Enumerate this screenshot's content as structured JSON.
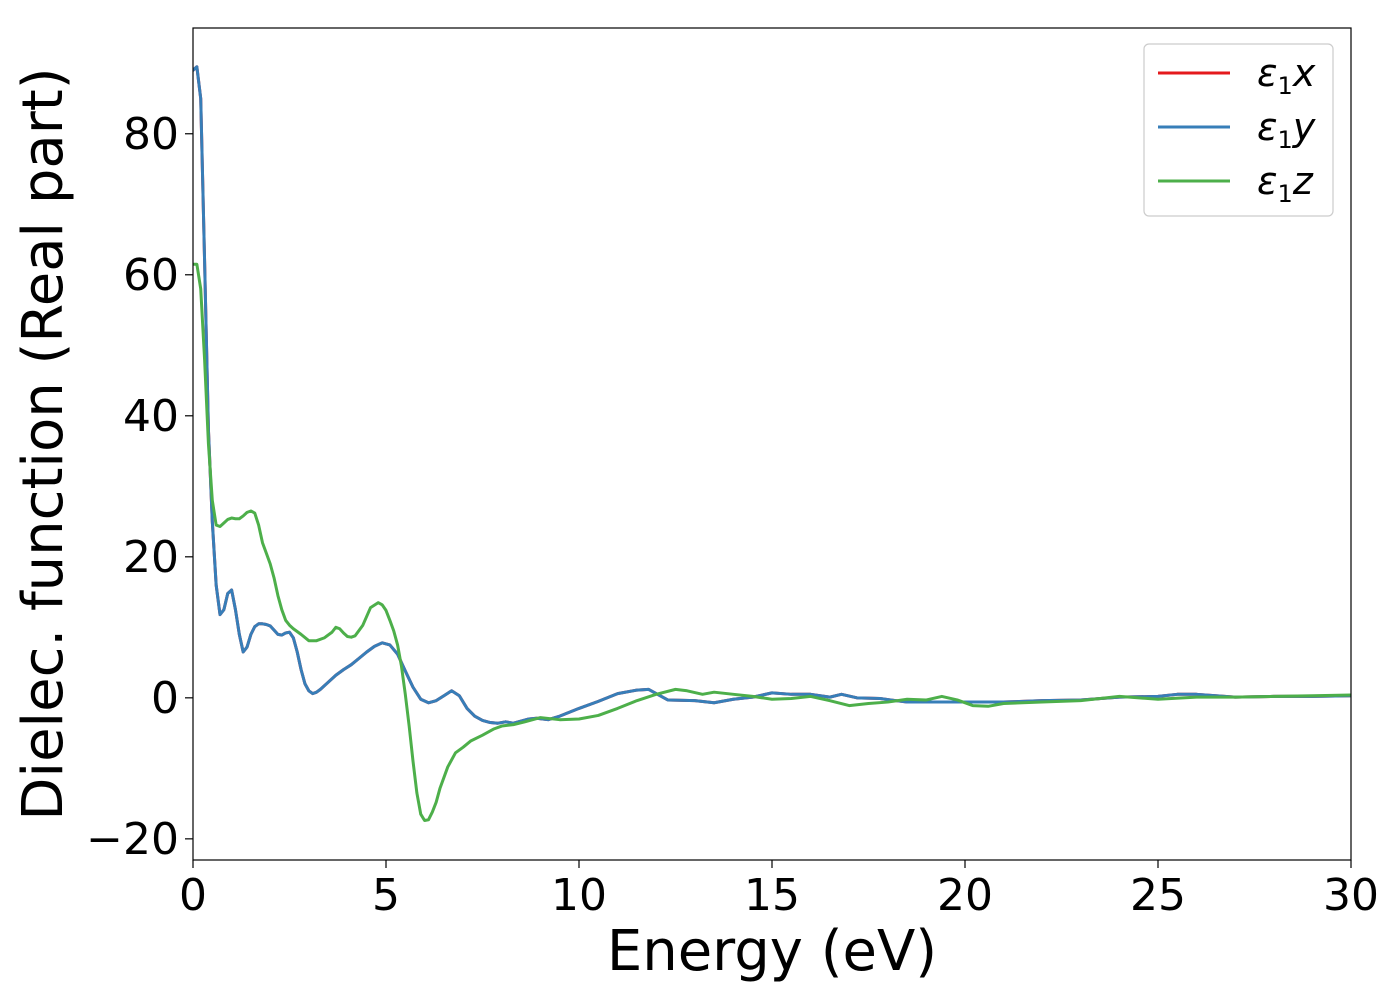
{
  "chart_data": {
    "type": "line",
    "title": "",
    "xlabel": "Energy (eV)",
    "ylabel": "Dielec. function (Real part)",
    "xlim": [
      0,
      30
    ],
    "ylim": [
      -23,
      95
    ],
    "xticks": [
      0,
      5,
      10,
      15,
      20,
      25,
      30
    ],
    "xtick_labels": [
      "0",
      "5",
      "10",
      "15",
      "20",
      "25",
      "30"
    ],
    "yticks": [
      -20,
      0,
      20,
      40,
      60,
      80
    ],
    "ytick_labels": [
      "−20",
      "0",
      "20",
      "40",
      "60",
      "80"
    ],
    "grid": false,
    "legend_position": "top-right",
    "series": [
      {
        "name": "ε1x",
        "legend_base": "ε",
        "legend_sub": "1",
        "legend_var": "x",
        "color": "#e41a1c",
        "x": [
          0,
          0.1,
          0.2,
          0.3,
          0.4,
          0.5,
          0.6,
          0.7,
          0.8,
          0.9,
          1.0,
          1.1,
          1.2,
          1.3,
          1.4,
          1.5,
          1.6,
          1.7,
          1.8,
          1.9,
          2.0,
          2.1,
          2.2,
          2.3,
          2.4,
          2.5,
          2.6,
          2.7,
          2.8,
          2.9,
          3.0,
          3.1,
          3.2,
          3.3,
          3.5,
          3.7,
          3.9,
          4.1,
          4.3,
          4.5,
          4.7,
          4.9,
          5.1,
          5.3,
          5.5,
          5.7,
          5.9,
          6.1,
          6.3,
          6.5,
          6.7,
          6.9,
          7.1,
          7.3,
          7.5,
          7.7,
          7.9,
          8.1,
          8.3,
          8.5,
          8.7,
          8.9,
          9.2,
          9.5,
          10.0,
          10.5,
          11.0,
          11.5,
          11.8,
          12.0,
          12.3,
          13.0,
          13.5,
          14.0,
          14.5,
          15.0,
          15.5,
          16.0,
          16.5,
          16.8,
          17.2,
          17.8,
          18.5,
          19.0,
          19.5,
          20.0,
          20.5,
          21.0,
          22.0,
          23.0,
          24.0,
          25.0,
          25.5,
          26.0,
          26.5,
          27.0,
          28.0,
          29.0,
          30.0
        ],
        "y": [
          89,
          89.5,
          85,
          62,
          38,
          25,
          16,
          11.8,
          12.5,
          14.8,
          15.3,
          12.5,
          9,
          6.5,
          7.2,
          9,
          10.1,
          10.5,
          10.5,
          10.4,
          10.2,
          9.6,
          9,
          8.9,
          9.2,
          9.3,
          8.5,
          6.5,
          4,
          2,
          1,
          0.6,
          0.8,
          1.2,
          2.2,
          3.2,
          4,
          4.7,
          5.6,
          6.5,
          7.3,
          7.8,
          7.5,
          6.2,
          3.8,
          1.5,
          -0.2,
          -0.7,
          -0.4,
          0.3,
          1,
          0.3,
          -1.5,
          -2.6,
          -3.2,
          -3.5,
          -3.6,
          -3.4,
          -3.6,
          -3.3,
          -3.0,
          -2.9,
          -3.1,
          -2.6,
          -1.5,
          -0.5,
          0.6,
          1.1,
          1.2,
          0.6,
          -0.3,
          -0.4,
          -0.7,
          -0.2,
          0.1,
          0.7,
          0.5,
          0.5,
          0.1,
          0.5,
          0.0,
          -0.1,
          -0.6,
          -0.6,
          -0.6,
          -0.6,
          -0.6,
          -0.6,
          -0.4,
          -0.3,
          0.1,
          0.2,
          0.5,
          0.5,
          0.3,
          0.1,
          0.2,
          0.2,
          0.3
        ]
      },
      {
        "name": "ε1y",
        "legend_base": "ε",
        "legend_sub": "1",
        "legend_var": "y",
        "color": "#377eb8",
        "x": [
          0,
          0.1,
          0.2,
          0.3,
          0.4,
          0.5,
          0.6,
          0.7,
          0.8,
          0.9,
          1.0,
          1.1,
          1.2,
          1.3,
          1.4,
          1.5,
          1.6,
          1.7,
          1.8,
          1.9,
          2.0,
          2.1,
          2.2,
          2.3,
          2.4,
          2.5,
          2.6,
          2.7,
          2.8,
          2.9,
          3.0,
          3.1,
          3.2,
          3.3,
          3.5,
          3.7,
          3.9,
          4.1,
          4.3,
          4.5,
          4.7,
          4.9,
          5.1,
          5.3,
          5.5,
          5.7,
          5.9,
          6.1,
          6.3,
          6.5,
          6.7,
          6.9,
          7.1,
          7.3,
          7.5,
          7.7,
          7.9,
          8.1,
          8.3,
          8.5,
          8.7,
          8.9,
          9.2,
          9.5,
          10.0,
          10.5,
          11.0,
          11.5,
          11.8,
          12.0,
          12.3,
          13.0,
          13.5,
          14.0,
          14.5,
          15.0,
          15.5,
          16.0,
          16.5,
          16.8,
          17.2,
          17.8,
          18.5,
          19.0,
          19.5,
          20.0,
          20.5,
          21.0,
          22.0,
          23.0,
          24.0,
          25.0,
          25.5,
          26.0,
          26.5,
          27.0,
          28.0,
          29.0,
          30.0
        ],
        "y": [
          89,
          89.5,
          85,
          62,
          38,
          25,
          16,
          11.8,
          12.5,
          14.8,
          15.3,
          12.5,
          9,
          6.5,
          7.2,
          9,
          10.1,
          10.5,
          10.5,
          10.4,
          10.2,
          9.6,
          9,
          8.9,
          9.2,
          9.3,
          8.5,
          6.5,
          4,
          2,
          1,
          0.6,
          0.8,
          1.2,
          2.2,
          3.2,
          4,
          4.7,
          5.6,
          6.5,
          7.3,
          7.8,
          7.5,
          6.2,
          3.8,
          1.5,
          -0.2,
          -0.7,
          -0.4,
          0.3,
          1,
          0.3,
          -1.5,
          -2.6,
          -3.2,
          -3.5,
          -3.6,
          -3.4,
          -3.6,
          -3.3,
          -3.0,
          -2.9,
          -3.1,
          -2.6,
          -1.5,
          -0.5,
          0.6,
          1.1,
          1.2,
          0.6,
          -0.3,
          -0.4,
          -0.7,
          -0.2,
          0.1,
          0.7,
          0.5,
          0.5,
          0.1,
          0.5,
          0.0,
          -0.1,
          -0.6,
          -0.6,
          -0.6,
          -0.6,
          -0.6,
          -0.6,
          -0.4,
          -0.3,
          0.1,
          0.2,
          0.5,
          0.5,
          0.3,
          0.1,
          0.2,
          0.2,
          0.3
        ]
      },
      {
        "name": "ε1z",
        "legend_base": "ε",
        "legend_sub": "1",
        "legend_var": "z",
        "color": "#4daf4a",
        "x": [
          0,
          0.1,
          0.2,
          0.3,
          0.4,
          0.5,
          0.6,
          0.7,
          0.8,
          0.9,
          1.0,
          1.1,
          1.2,
          1.3,
          1.4,
          1.5,
          1.6,
          1.7,
          1.8,
          1.9,
          2.0,
          2.1,
          2.2,
          2.3,
          2.4,
          2.5,
          2.6,
          2.8,
          3.0,
          3.2,
          3.4,
          3.6,
          3.7,
          3.8,
          3.9,
          4.0,
          4.1,
          4.2,
          4.4,
          4.6,
          4.8,
          4.9,
          5.0,
          5.1,
          5.2,
          5.3,
          5.4,
          5.5,
          5.6,
          5.7,
          5.8,
          5.9,
          6.0,
          6.1,
          6.2,
          6.3,
          6.4,
          6.6,
          6.8,
          7.0,
          7.2,
          7.5,
          7.8,
          8.0,
          8.3,
          8.6,
          9.0,
          9.5,
          10.0,
          10.5,
          11.0,
          11.5,
          12.0,
          12.5,
          12.8,
          13.2,
          13.5,
          14.0,
          14.5,
          15.0,
          15.5,
          16.0,
          16.5,
          17.0,
          17.5,
          18.0,
          18.5,
          19.0,
          19.4,
          19.8,
          20.2,
          20.6,
          21.0,
          22.0,
          23.0,
          24.0,
          25.0,
          26.0,
          27.0,
          28.0,
          29.0,
          30.0
        ],
        "y": [
          61.5,
          61.5,
          58,
          48,
          36,
          28,
          24.5,
          24.3,
          24.8,
          25.3,
          25.5,
          25.4,
          25.4,
          25.8,
          26.3,
          26.5,
          26.2,
          24.5,
          22,
          20.5,
          19,
          17,
          14.5,
          12.5,
          11,
          10.3,
          9.8,
          9,
          8.1,
          8.1,
          8.5,
          9.3,
          10,
          9.8,
          9.2,
          8.7,
          8.6,
          8.8,
          10.3,
          12.8,
          13.5,
          13.2,
          12.4,
          11,
          9.5,
          7.5,
          4.5,
          0.5,
          -4,
          -9,
          -13.5,
          -16.5,
          -17.4,
          -17.3,
          -16.2,
          -14.8,
          -12.8,
          -9.8,
          -7.8,
          -7.0,
          -6.1,
          -5.3,
          -4.4,
          -4.0,
          -3.8,
          -3.4,
          -2.8,
          -3.1,
          -3.0,
          -2.5,
          -1.5,
          -0.4,
          0.5,
          1.2,
          1.0,
          0.5,
          0.8,
          0.5,
          0.2,
          -0.2,
          -0.1,
          0.2,
          -0.4,
          -1.1,
          -0.8,
          -0.6,
          -0.2,
          -0.3,
          0.2,
          -0.3,
          -1.1,
          -1.2,
          -0.8,
          -0.6,
          -0.4,
          0.2,
          -0.2,
          0.1,
          0.1,
          0.2,
          0.3,
          0.4
        ]
      }
    ]
  }
}
